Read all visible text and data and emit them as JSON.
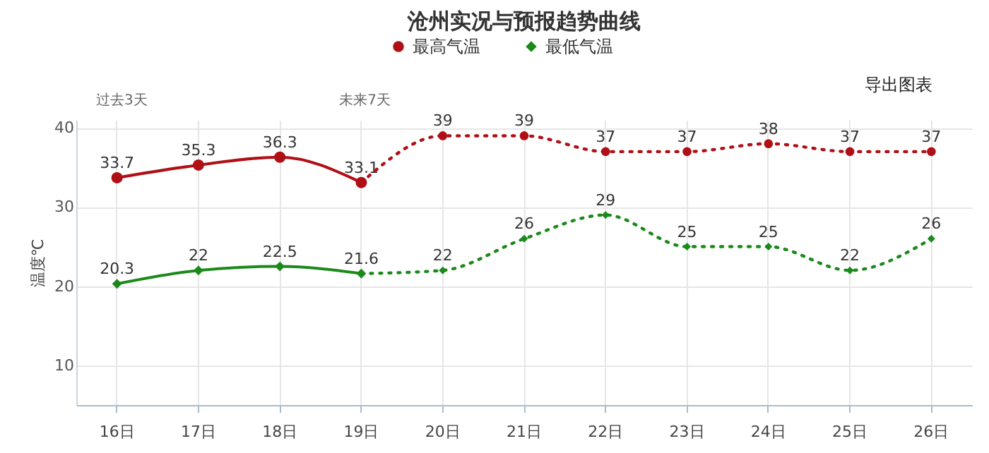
{
  "chart_data": {
    "type": "line",
    "title": "沧州实况与预报趋势曲线",
    "ylabel": "温度℃",
    "categories": [
      "16日",
      "17日",
      "18日",
      "19日",
      "20日",
      "21日",
      "22日",
      "23日",
      "24日",
      "25日",
      "26日"
    ],
    "series": [
      {
        "name": "最高气温",
        "color": "#b00f16",
        "marker": "circle",
        "line_style": "solid",
        "values": [
          33.7,
          35.3,
          36.3,
          33.1,
          null,
          null,
          null,
          null,
          null,
          null,
          null
        ],
        "value_labels": [
          "33.7",
          "35.3",
          "36.3",
          "33.1",
          null,
          null,
          null,
          null,
          null,
          null,
          null
        ]
      },
      {
        "color": "#b00f16",
        "marker": "circle",
        "line_style": "dotted",
        "values": [
          null,
          null,
          null,
          33.1,
          39,
          39,
          37,
          37,
          38,
          37,
          37
        ],
        "value_labels": [
          null,
          null,
          null,
          null,
          "39",
          "39",
          "37",
          "37",
          "38",
          "37",
          "37"
        ]
      },
      {
        "name": "最低气温",
        "color": "#1b8a1b",
        "marker": "diamond",
        "line_style": "solid",
        "values": [
          20.3,
          22,
          22.5,
          21.6,
          null,
          null,
          null,
          null,
          null,
          null,
          null
        ],
        "value_labels": [
          "20.3",
          "22",
          "22.5",
          "21.6",
          null,
          null,
          null,
          null,
          null,
          null,
          null
        ]
      },
      {
        "color": "#1b8a1b",
        "marker": "diamond",
        "line_style": "dotted",
        "values": [
          null,
          null,
          null,
          21.6,
          22,
          26,
          29,
          25,
          25,
          22,
          26
        ],
        "value_labels": [
          null,
          null,
          null,
          null,
          "22",
          "26",
          "29",
          "25",
          "25",
          "22",
          "26"
        ]
      }
    ],
    "ylim": [
      5,
      41
    ],
    "yticks": [
      10,
      20,
      30,
      40
    ],
    "grid": true,
    "legend": "top",
    "annotations": [
      "过去3天",
      "未来7天",
      "导出图表"
    ]
  }
}
